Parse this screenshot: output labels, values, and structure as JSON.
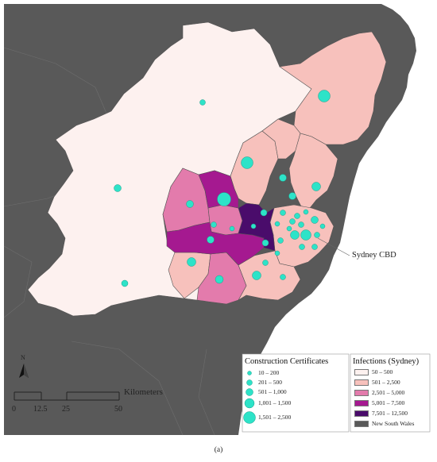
{
  "map": {
    "callout_label": "Sydney CBD",
    "north_label": "N",
    "scalebar": {
      "unit_label": "Kilometers",
      "ticks": [
        "0",
        "12.5",
        "25",
        "50"
      ]
    },
    "colors": {
      "background": "#595959",
      "region_bg": "#fdf1ef",
      "bubble": "#2de3c8",
      "bubble_stroke": "#1a9e8a",
      "ocean": "#ffffff",
      "coast": "#555555"
    }
  },
  "legend_cc": {
    "title": "Construction Certificates",
    "items": [
      "10 – 200",
      "201 – 500",
      "501 – 1,000",
      "1,001 – 1,500",
      "1,501 – 2,500"
    ]
  },
  "legend_inf": {
    "title": "Infections (Sydney)",
    "items": [
      {
        "label": "50 – 500",
        "color": "#fdf1ef"
      },
      {
        "label": "501 – 2,500",
        "color": "#f7c1bc"
      },
      {
        "label": "2,501 – 5,000",
        "color": "#e37bac"
      },
      {
        "label": "5,001 – 7,500",
        "color": "#a51990"
      },
      {
        "label": "7,501 – 12,500",
        "color": "#4a0c6b"
      },
      {
        "label": "New South Wales",
        "color": "#595959"
      }
    ]
  },
  "caption": "(a)"
}
